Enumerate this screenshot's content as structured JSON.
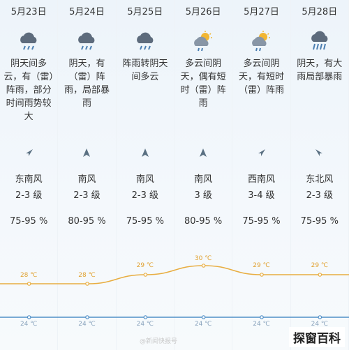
{
  "days": [
    {
      "date": "5月23日",
      "icon": "rain-cloud-icon",
      "desc": "阴天间多云，有（雷）阵雨，部分时间雨势较大",
      "wind_arrow": "northeast-arrow",
      "wind_dir": "东南风",
      "wind_level": "2-3 级",
      "humidity": "75-95 %",
      "high": "28 ℃",
      "low": "24 ℃"
    },
    {
      "date": "5月24日",
      "icon": "rain-cloud-icon",
      "desc": "阴天，有（雷）阵雨，局部暴雨",
      "wind_arrow": "north-arrow",
      "wind_dir": "南风",
      "wind_level": "2-3 级",
      "humidity": "80-95 %",
      "high": "28 ℃",
      "low": "24 ℃"
    },
    {
      "date": "5月25日",
      "icon": "rain-cloud-icon",
      "desc": "阵雨转阴天间多云",
      "wind_arrow": "north-arrow",
      "wind_dir": "南风",
      "wind_level": "2-3 级",
      "humidity": "75-95 %",
      "high": "29 ℃",
      "low": "24 ℃"
    },
    {
      "date": "5月26日",
      "icon": "sun-cloud-rain-icon",
      "desc": "多云间阴天，偶有短时（雷）阵雨",
      "wind_arrow": "north-arrow",
      "wind_dir": "南风",
      "wind_level": "3 级",
      "humidity": "80-95 %",
      "high": "30 ℃",
      "low": "24 ℃"
    },
    {
      "date": "5月27日",
      "icon": "sun-cloud-rain-icon",
      "desc": "多云间阴天，有短时（雷）阵雨",
      "wind_arrow": "northeast-arrow",
      "wind_dir": "西南风",
      "wind_level": "3-4 级",
      "humidity": "75-95 %",
      "high": "29 ℃",
      "low": "24 ℃"
    },
    {
      "date": "5月28日",
      "icon": "heavy-rain-cloud-icon",
      "desc": "阴天，有大雨局部暴雨",
      "wind_arrow": "northwest-arrow",
      "wind_dir": "东北风",
      "wind_level": "2-3 级",
      "humidity": "75-95 %",
      "high": "29 ℃",
      "low": "24 ℃"
    }
  ],
  "chart_data": {
    "type": "line",
    "categories": [
      "5月23日",
      "5月24日",
      "5月25日",
      "5月26日",
      "5月27日",
      "5月28日"
    ],
    "series": [
      {
        "values": [
          28,
          28,
          29,
          30,
          29,
          29
        ]
      },
      {
        "values": [
          24,
          24,
          24,
          24,
          24,
          24
        ]
      }
    ],
    "high_color": "#e8ad40",
    "low_color": "#4f8fc7"
  },
  "watermark": "@新闻快报号",
  "logo": "探窗百科"
}
